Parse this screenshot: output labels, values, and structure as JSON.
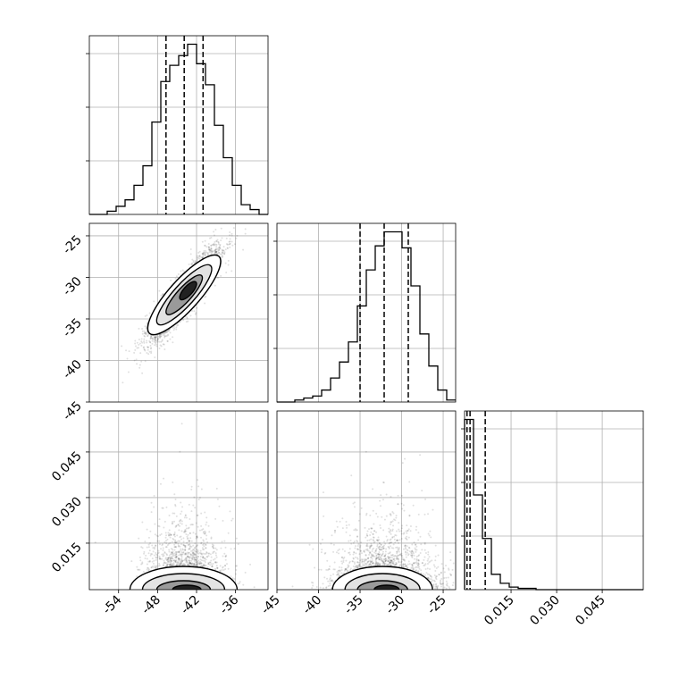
{
  "chart_data": {
    "type": "corner",
    "parameters": [
      {
        "key": "p1",
        "label": "",
        "quantiles": [
          -46.7,
          -43.9,
          -41.0
        ]
      },
      {
        "key": "p2",
        "label": "",
        "quantiles": [
          -35.0,
          -32.1,
          -29.2
        ]
      },
      {
        "key": "p3",
        "label": "",
        "quantiles": [
          0.0005,
          0.0015,
          0.0065
        ]
      }
    ],
    "ticks": {
      "p1": [
        "-54",
        "-48",
        "-42",
        "-36"
      ],
      "p2": [
        "-45",
        "-40",
        "-35",
        "-30",
        "-25"
      ],
      "p2_row": [
        "-25",
        "-30",
        "-35",
        "-40",
        "-45"
      ],
      "p3": [
        "0.015",
        "0.030",
        "0.045"
      ],
      "p3_row": [
        "0.045",
        "0.030",
        "0.015"
      ]
    },
    "tick_values": {
      "p1": [
        -54,
        -48,
        -42,
        -36
      ],
      "p2": [
        -45,
        -40,
        -35,
        -30,
        -25
      ],
      "p3": [
        0.015,
        0.03,
        0.045
      ]
    },
    "ranges": {
      "p1": [
        -58.5,
        -31.0
      ],
      "p2": [
        -45.0,
        -23.5
      ],
      "p3": [
        -0.0003,
        0.0585
      ]
    },
    "histograms": {
      "p1": {
        "bin_edges": [
          -58.5,
          -57.125,
          -55.75,
          -54.375,
          -53.0,
          -51.625,
          -50.25,
          -48.875,
          -47.5,
          -46.125,
          -44.75,
          -43.375,
          -42.0,
          -40.625,
          -39.25,
          -37.875,
          -36.5,
          -35.125,
          -33.75,
          -32.375,
          -31.0
        ],
        "counts": [
          0,
          0,
          2,
          5,
          9,
          18,
          30,
          57,
          82,
          92,
          98,
          105,
          93,
          80,
          55,
          35,
          18,
          6,
          3,
          0
        ]
      },
      "p2": {
        "bin_edges": [
          -45.0,
          -43.925,
          -42.85,
          -41.775,
          -40.7,
          -39.625,
          -38.55,
          -37.475,
          -36.4,
          -35.325,
          -34.25,
          -33.175,
          -32.1,
          -31.025,
          -29.95,
          -28.875,
          -27.8,
          -26.725,
          -25.65,
          -24.575,
          -23.5
        ],
        "counts": [
          0,
          0,
          1,
          2,
          3,
          6,
          12,
          20,
          30,
          48,
          66,
          78,
          85,
          85,
          77,
          58,
          34,
          18,
          6,
          1
        ]
      },
      "p3": {
        "bin_edges": [
          -0.0003,
          0.00264,
          0.00558,
          0.00852,
          0.01146,
          0.0144,
          0.01734,
          0.02028,
          0.02322,
          0.02616,
          0.0291,
          0.03204,
          0.03498,
          0.03792,
          0.04086,
          0.0438,
          0.04674,
          0.04968,
          0.05262,
          0.05556,
          0.0585
        ],
        "counts": [
          133,
          74,
          40,
          12,
          5,
          2,
          1,
          1,
          0,
          0,
          0,
          0,
          0,
          0,
          0,
          0,
          0,
          0,
          0,
          0
        ]
      }
    },
    "grid": true,
    "quantile_line_style": "dashed"
  }
}
